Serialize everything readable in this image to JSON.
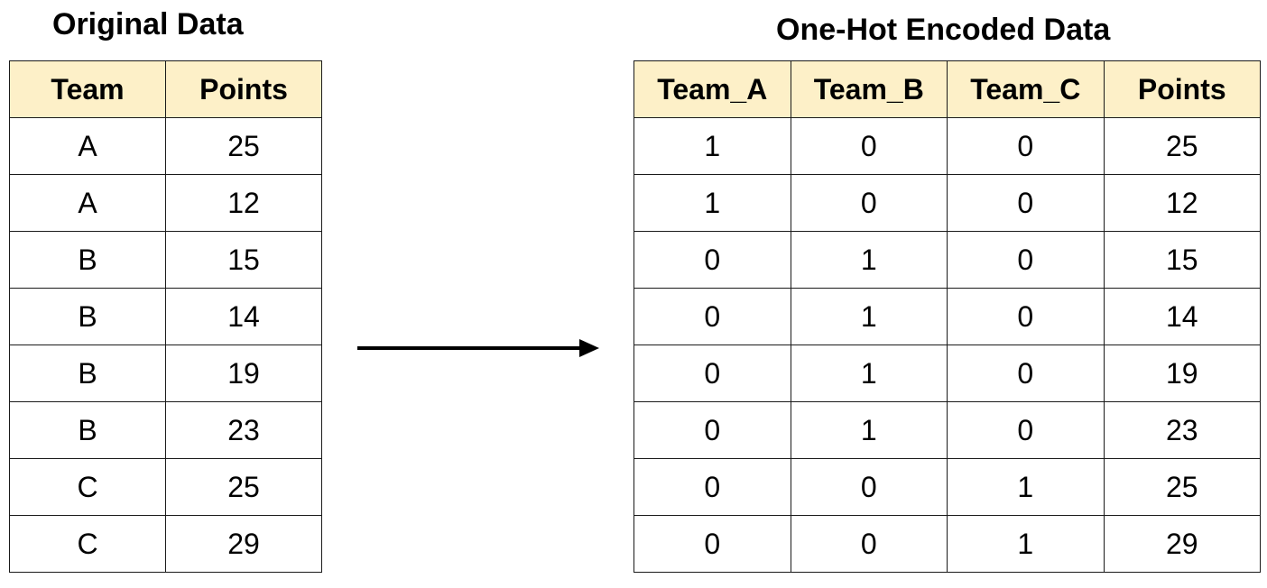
{
  "original": {
    "title": "Original Data",
    "headers": [
      "Team",
      "Points"
    ],
    "rows": [
      [
        "A",
        "25"
      ],
      [
        "A",
        "12"
      ],
      [
        "B",
        "15"
      ],
      [
        "B",
        "14"
      ],
      [
        "B",
        "19"
      ],
      [
        "B",
        "23"
      ],
      [
        "C",
        "25"
      ],
      [
        "C",
        "29"
      ]
    ]
  },
  "encoded": {
    "title": "One-Hot Encoded Data",
    "headers": [
      "Team_A",
      "Team_B",
      "Team_C",
      "Points"
    ],
    "rows": [
      [
        "1",
        "0",
        "0",
        "25"
      ],
      [
        "1",
        "0",
        "0",
        "12"
      ],
      [
        "0",
        "1",
        "0",
        "15"
      ],
      [
        "0",
        "1",
        "0",
        "14"
      ],
      [
        "0",
        "1",
        "0",
        "19"
      ],
      [
        "0",
        "1",
        "0",
        "23"
      ],
      [
        "0",
        "0",
        "1",
        "25"
      ],
      [
        "0",
        "0",
        "1",
        "29"
      ]
    ]
  },
  "colors": {
    "header_bg": "#fdf0c8",
    "border": "#1a1a1a",
    "arrow": "#000000"
  }
}
